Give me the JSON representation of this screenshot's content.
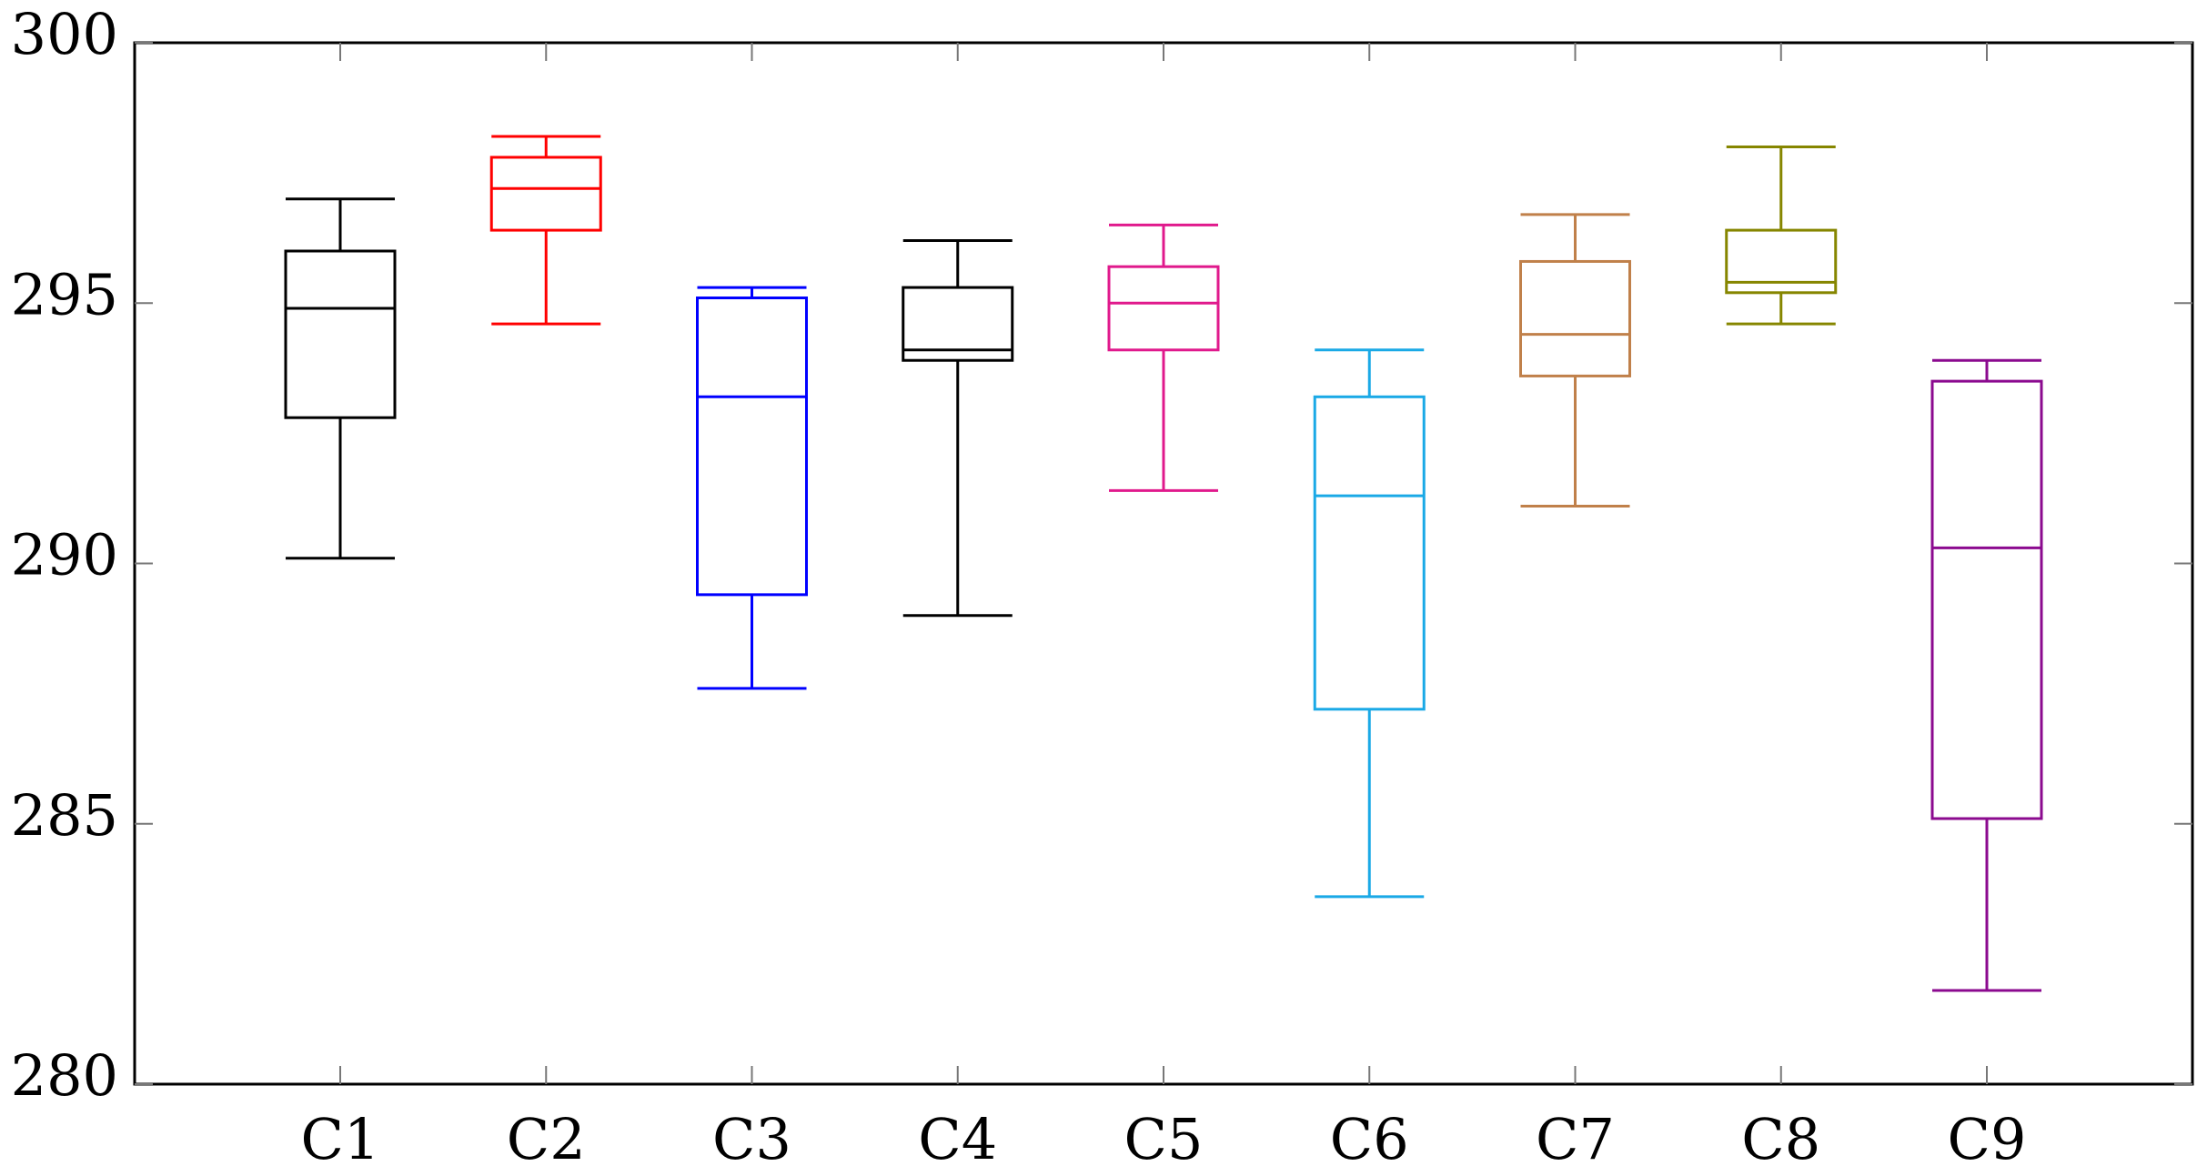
{
  "chart_data": {
    "type": "boxplot",
    "title": "",
    "xlabel": "",
    "ylabel": "",
    "ylim": [
      280,
      300
    ],
    "yticks": [
      280,
      285,
      290,
      295,
      300
    ],
    "grid": false,
    "categories": [
      "C1",
      "C2",
      "C3",
      "C4",
      "C5",
      "C6",
      "C7",
      "C8",
      "C9"
    ],
    "series": [
      {
        "name": "C1",
        "color": "#000000",
        "whisker_low": 290.1,
        "q1": 292.8,
        "median": 294.9,
        "q3": 296.0,
        "whisker_high": 297.0
      },
      {
        "name": "C2",
        "color": "#ff0000",
        "whisker_low": 294.6,
        "q1": 296.4,
        "median": 297.2,
        "q3": 297.8,
        "whisker_high": 298.2
      },
      {
        "name": "C3",
        "color": "#0000ff",
        "whisker_low": 287.6,
        "q1": 289.4,
        "median": 293.2,
        "q3": 295.1,
        "whisker_high": 295.3
      },
      {
        "name": "C4",
        "color": "#000000",
        "whisker_low": 289.0,
        "q1": 293.9,
        "median": 294.1,
        "q3": 295.3,
        "whisker_high": 296.2
      },
      {
        "name": "C5",
        "color": "#e0198c",
        "whisker_low": 291.4,
        "q1": 294.1,
        "median": 295.0,
        "q3": 295.7,
        "whisker_high": 296.5
      },
      {
        "name": "C6",
        "color": "#1aa9e6",
        "whisker_low": 283.6,
        "q1": 287.2,
        "median": 291.3,
        "q3": 293.2,
        "whisker_high": 294.1
      },
      {
        "name": "C7",
        "color": "#c0804a",
        "whisker_low": 291.1,
        "q1": 293.6,
        "median": 294.4,
        "q3": 295.8,
        "whisker_high": 296.7
      },
      {
        "name": "C8",
        "color": "#868600",
        "whisker_low": 294.6,
        "q1": 295.2,
        "median": 295.4,
        "q3": 296.4,
        "whisker_high": 298.0
      },
      {
        "name": "C9",
        "color": "#8b0a8f",
        "whisker_low": 281.8,
        "q1": 285.1,
        "median": 290.3,
        "q3": 293.5,
        "whisker_high": 293.9
      }
    ]
  }
}
